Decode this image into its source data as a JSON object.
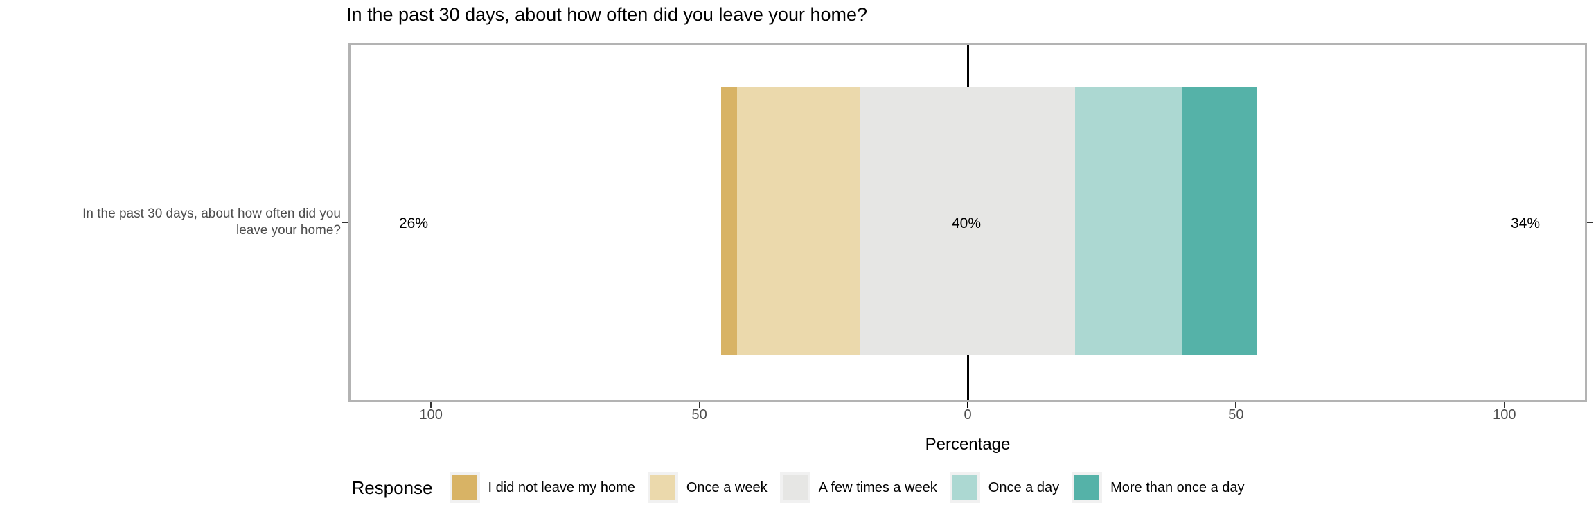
{
  "chart_data": {
    "type": "bar",
    "subtype": "diverging-stacked-likert",
    "orientation": "horizontal",
    "title": "In the past 30 days, about how often did you leave your home?",
    "category_label_lines": [
      "In the past 30 days, about how often did you",
      "leave your home?"
    ],
    "xlabel": "Percentage",
    "xlim": [
      -115,
      115
    ],
    "x_ticks": [
      -100,
      -50,
      0,
      50,
      100
    ],
    "x_tick_labels": [
      "100",
      "50",
      "0",
      "50",
      "100"
    ],
    "grid": "off",
    "legend_title": "Response",
    "legend_position": "bottom",
    "neutral_category": "A few times a week",
    "series": [
      {
        "name": "I did not leave my home",
        "value": 3,
        "color": "#D8B365"
      },
      {
        "name": "Once a week",
        "value": 23,
        "color": "#EBD9AC"
      },
      {
        "name": "A few times a week",
        "value": 40,
        "color": "#E6E6E4"
      },
      {
        "name": "Once a day",
        "value": 20,
        "color": "#ACD8D2"
      },
      {
        "name": "More than once a day",
        "value": 14,
        "color": "#55B2A8"
      }
    ],
    "annotations": {
      "left_pct": "26%",
      "center_pct": "40%",
      "right_pct": "34%"
    },
    "panel_border_color": "#b3b3b3",
    "zero_line_color": "#000000",
    "axis_text_color": "#4d4d4d"
  }
}
